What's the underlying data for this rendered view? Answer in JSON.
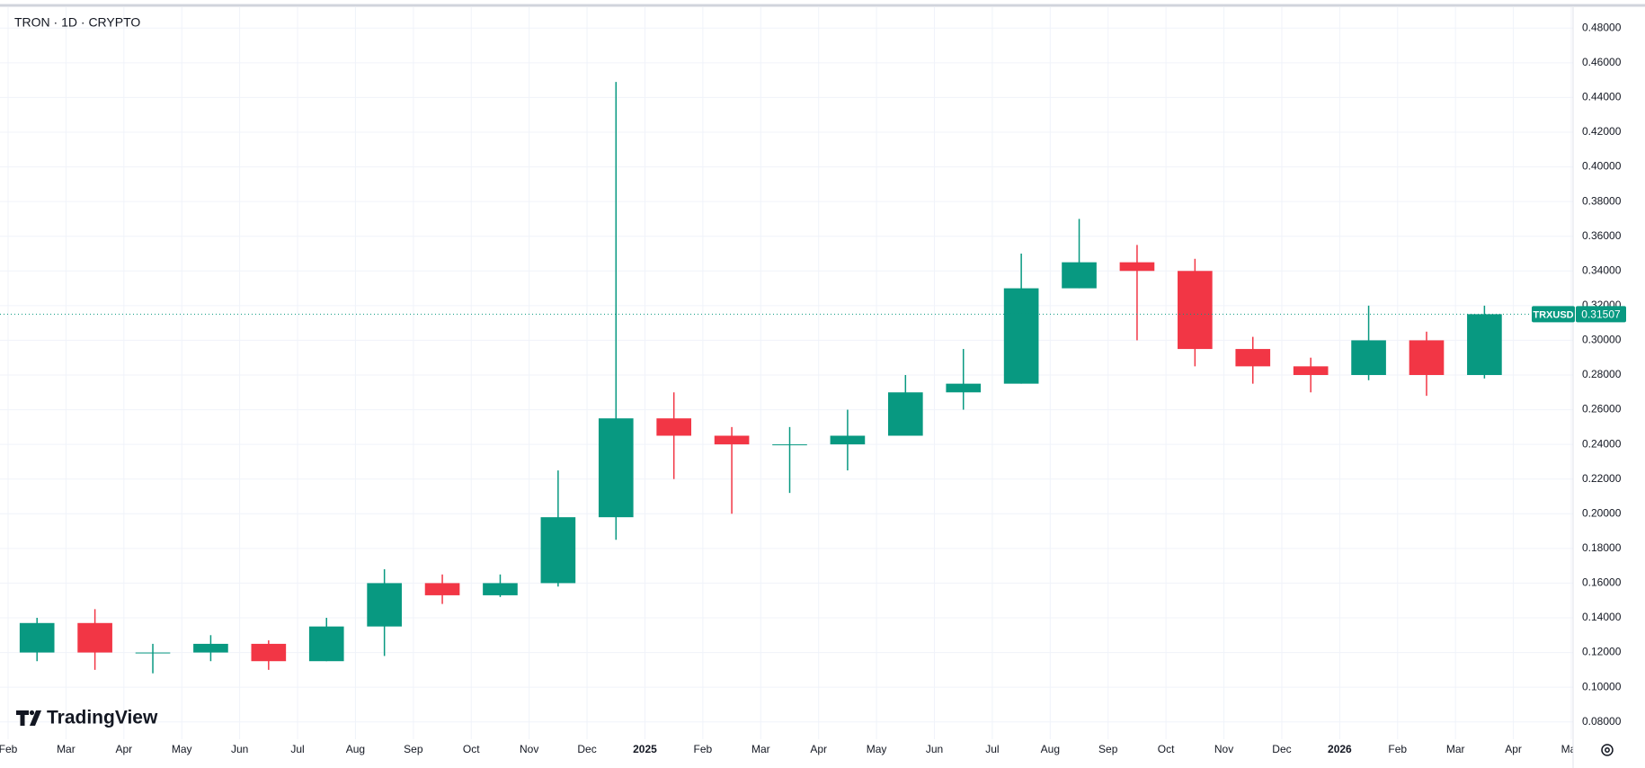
{
  "chart_data": {
    "type": "candlestick",
    "title": "TRON · 1D · CRYPTO",
    "symbol": "TRXUSD",
    "last_price": 0.31507,
    "up_color": "#089981",
    "down_color": "#f23645",
    "grid": true,
    "x": [
      "2024-02",
      "2024-03",
      "2024-04",
      "2024-05",
      "2024-06",
      "2024-07",
      "2024-08",
      "2024-09",
      "2024-10",
      "2024-11",
      "2024-12",
      "2025-01",
      "2025-02",
      "2025-03",
      "2025-04",
      "2025-05",
      "2025-06",
      "2025-07",
      "2025-08",
      "2025-09",
      "2025-10",
      "2025-11",
      "2025-12",
      "2026-01",
      "2026-02",
      "2026-03"
    ],
    "open": [
      0.12,
      0.137,
      0.12,
      0.12,
      0.125,
      0.115,
      0.135,
      0.16,
      0.153,
      0.16,
      0.198,
      0.255,
      0.245,
      0.24,
      0.24,
      0.245,
      0.27,
      0.275,
      0.33,
      0.345,
      0.34,
      0.295,
      0.285,
      0.28,
      0.3,
      0.28
    ],
    "high": [
      0.14,
      0.145,
      0.125,
      0.13,
      0.127,
      0.14,
      0.168,
      0.165,
      0.165,
      0.225,
      0.449,
      0.27,
      0.25,
      0.25,
      0.26,
      0.28,
      0.295,
      0.35,
      0.37,
      0.355,
      0.347,
      0.302,
      0.29,
      0.32,
      0.305,
      0.32
    ],
    "low": [
      0.115,
      0.11,
      0.108,
      0.115,
      0.11,
      0.115,
      0.118,
      0.148,
      0.152,
      0.158,
      0.185,
      0.22,
      0.2,
      0.212,
      0.225,
      0.245,
      0.26,
      0.275,
      0.33,
      0.3,
      0.285,
      0.275,
      0.27,
      0.277,
      0.268,
      0.278
    ],
    "close": [
      0.137,
      0.12,
      0.12,
      0.125,
      0.115,
      0.135,
      0.16,
      0.153,
      0.16,
      0.198,
      0.255,
      0.245,
      0.24,
      0.24,
      0.245,
      0.27,
      0.275,
      0.33,
      0.345,
      0.34,
      0.295,
      0.285,
      0.28,
      0.3,
      0.28,
      0.31507
    ],
    "xlim": [
      "2024-02",
      "2026-05"
    ],
    "xticks": [
      {
        "value": "2024-02",
        "label": "Feb"
      },
      {
        "value": "2024-03",
        "label": "Mar"
      },
      {
        "value": "2024-04",
        "label": "Apr"
      },
      {
        "value": "2024-05",
        "label": "May"
      },
      {
        "value": "2024-06",
        "label": "Jun"
      },
      {
        "value": "2024-07",
        "label": "Jul"
      },
      {
        "value": "2024-08",
        "label": "Aug"
      },
      {
        "value": "2024-09",
        "label": "Sep"
      },
      {
        "value": "2024-10",
        "label": "Oct"
      },
      {
        "value": "2024-11",
        "label": "Nov"
      },
      {
        "value": "2024-12",
        "label": "Dec"
      },
      {
        "value": "2025-01",
        "label": "2025"
      },
      {
        "value": "2025-02",
        "label": "Feb"
      },
      {
        "value": "2025-03",
        "label": "Mar"
      },
      {
        "value": "2025-04",
        "label": "Apr"
      },
      {
        "value": "2025-05",
        "label": "May"
      },
      {
        "value": "2025-06",
        "label": "Jun"
      },
      {
        "value": "2025-07",
        "label": "Jul"
      },
      {
        "value": "2025-08",
        "label": "Aug"
      },
      {
        "value": "2025-09",
        "label": "Sep"
      },
      {
        "value": "2025-10",
        "label": "Oct"
      },
      {
        "value": "2025-11",
        "label": "Nov"
      },
      {
        "value": "2025-12",
        "label": "Dec"
      },
      {
        "value": "2026-01",
        "label": "2026"
      },
      {
        "value": "2026-02",
        "label": "Feb"
      },
      {
        "value": "2026-03",
        "label": "Mar"
      },
      {
        "value": "2026-04",
        "label": "Apr"
      },
      {
        "value": "2026-05",
        "label": "May"
      }
    ],
    "ylim": [
      0.07,
      0.49
    ],
    "yticks": [
      {
        "value": 0.08,
        "label": "0.08000"
      },
      {
        "value": 0.1,
        "label": "0.10000"
      },
      {
        "value": 0.12,
        "label": "0.12000"
      },
      {
        "value": 0.14,
        "label": "0.14000"
      },
      {
        "value": 0.16,
        "label": "0.16000"
      },
      {
        "value": 0.18,
        "label": "0.18000"
      },
      {
        "value": 0.2,
        "label": "0.20000"
      },
      {
        "value": 0.22,
        "label": "0.22000"
      },
      {
        "value": 0.24,
        "label": "0.24000"
      },
      {
        "value": 0.26,
        "label": "0.26000"
      },
      {
        "value": 0.28,
        "label": "0.28000"
      },
      {
        "value": 0.3,
        "label": "0.30000"
      },
      {
        "value": 0.32,
        "label": "0.32000"
      },
      {
        "value": 0.34,
        "label": "0.34000"
      },
      {
        "value": 0.36,
        "label": "0.36000"
      },
      {
        "value": 0.38,
        "label": "0.38000"
      },
      {
        "value": 0.4,
        "label": "0.40000"
      },
      {
        "value": 0.42,
        "label": "0.42000"
      },
      {
        "value": 0.44,
        "label": "0.44000"
      },
      {
        "value": 0.46,
        "label": "0.46000"
      },
      {
        "value": 0.48,
        "label": "0.48000"
      }
    ]
  },
  "watermark": "TradingView"
}
